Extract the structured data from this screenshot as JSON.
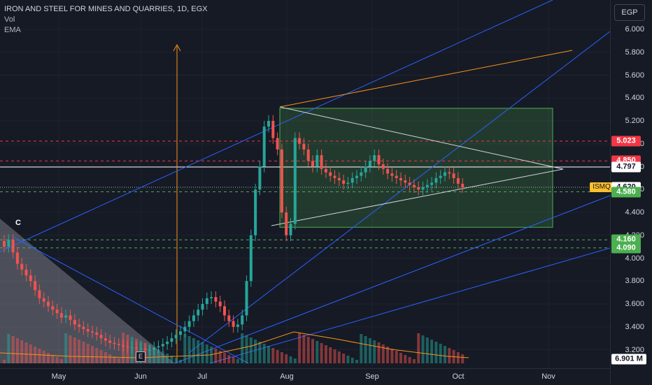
{
  "legend": {
    "title": "IRON AND STEEL FOR MINES AND QUARRIES, 1D, EGX",
    "vol": "Vol",
    "ema": "EMA"
  },
  "currency": "EGP",
  "symbol_tag": "ISMQ",
  "price_ticks": [
    "6.000",
    "5.800",
    "5.600",
    "5.400",
    "5.200",
    "5.000",
    "4.800",
    "4.600",
    "4.400",
    "4.200",
    "4.000",
    "3.800",
    "3.600",
    "3.400",
    "3.200"
  ],
  "time_labels": [
    "May",
    "Jun",
    "Jul",
    "Aug",
    "Sep",
    "Oct",
    "Nov"
  ],
  "badges": [
    {
      "text": "5.023",
      "price": 5.023,
      "bg": "#f23645",
      "fg": "#ffffff"
    },
    {
      "text": "4.850",
      "price": 4.85,
      "bg": "#f23645",
      "fg": "#ffffff"
    },
    {
      "text": "4.797",
      "price": 4.797,
      "bg": "#ffffff",
      "fg": "#131722"
    },
    {
      "text": "4.620",
      "price": 4.62,
      "bg": "#ffffff",
      "fg": "#131722"
    },
    {
      "text": "4.580",
      "price": 4.58,
      "bg": "#4caf50",
      "fg": "#ffffff"
    },
    {
      "text": "4.160",
      "price": 4.16,
      "bg": "#4caf50",
      "fg": "#ffffff"
    },
    {
      "text": "4.090",
      "price": 4.09,
      "bg": "#4caf50",
      "fg": "#ffffff"
    }
  ],
  "volume_badge": "6.901 M",
  "annotations": {
    "c_label": "C",
    "e_marker": "E"
  },
  "colors": {
    "up": "#26a69a",
    "down": "#ef5350",
    "trendline": "#2962ff",
    "orange": "#f7931a",
    "green_zone": "#4caf50",
    "red_level": "#f23645"
  }
}
